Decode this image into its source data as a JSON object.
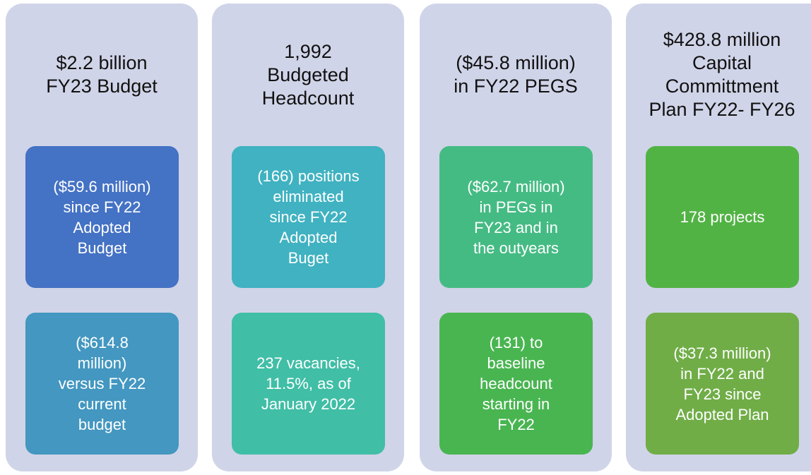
{
  "columns": [
    {
      "title": [
        "$2.2 billion",
        "FY23 Budget"
      ],
      "boxes": [
        [
          "($59.6 million)",
          "since FY22",
          "Adopted",
          "Budget"
        ],
        [
          "($614.8",
          "million)",
          "versus FY22",
          "current",
          "budget"
        ]
      ]
    },
    {
      "title": [
        "1,992",
        "Budgeted",
        "Headcount"
      ],
      "boxes": [
        [
          "(166) positions",
          "eliminated",
          "since FY22",
          "Adopted",
          "Buget"
        ],
        [
          "237 vacancies,",
          "11.5%, as of",
          "January 2022"
        ]
      ]
    },
    {
      "title": [
        "($45.8 million)",
        "in FY22 PEGS"
      ],
      "boxes": [
        [
          "($62.7 million)",
          "in PEGs in",
          "FY23 and in",
          "the outyears"
        ],
        [
          "(131) to",
          "baseline",
          "headcount",
          "starting in",
          "FY22"
        ]
      ]
    },
    {
      "title": [
        "$428.8 million",
        "Capital",
        "Committment",
        "Plan FY22- FY26"
      ],
      "boxes": [
        [
          "178 projects"
        ],
        [
          "($37.3 million)",
          "in FY22 and",
          "FY23 since",
          "Adopted Plan"
        ]
      ]
    }
  ]
}
